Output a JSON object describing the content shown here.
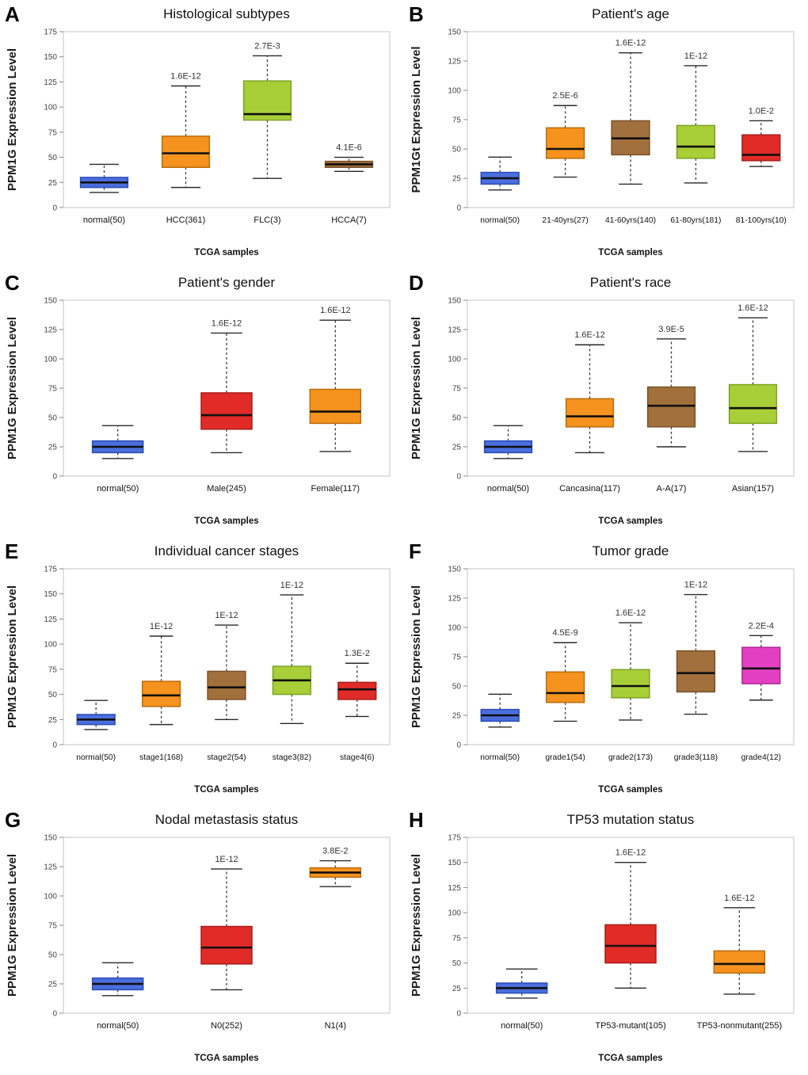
{
  "figure": {
    "background": "#ffffff",
    "xlabel": "TCGA samples"
  },
  "palette": {
    "blue": {
      "fill": "#4a6edd",
      "border": "#2b4cb8"
    },
    "orange": {
      "fill": "#f6921e",
      "border": "#b96d0e"
    },
    "green": {
      "fill": "#a8ce38",
      "border": "#7ea224"
    },
    "brown": {
      "fill": "#a1703c",
      "border": "#7a5229"
    },
    "red": {
      "fill": "#e02b27",
      "border": "#a81d1a"
    },
    "magenta": {
      "fill": "#e240c1",
      "border": "#b02894"
    }
  },
  "chart_data": [
    {
      "type": "boxplot",
      "panel_label": "A",
      "title": "Histological subtypes",
      "ylabel": "PPM1G Expression Level",
      "xlabel": "TCGA samples",
      "ylim": [
        0,
        175
      ],
      "ytick_step": 25,
      "categories": [
        "normal(50)",
        "HCC(361)",
        "FLC(3)",
        "HCCA(7)"
      ],
      "boxes": [
        {
          "color": "blue",
          "low": 15,
          "q1": 20,
          "median": 25,
          "q3": 30,
          "high": 43,
          "pvalue": ""
        },
        {
          "color": "orange",
          "low": 20,
          "q1": 40,
          "median": 54,
          "q3": 71,
          "high": 121,
          "pvalue": "1.6E-12"
        },
        {
          "color": "green",
          "low": 29,
          "q1": 87,
          "median": 93,
          "q3": 126,
          "high": 151,
          "pvalue": "2.7E-3"
        },
        {
          "color": "brown",
          "low": 36,
          "q1": 40,
          "median": 43,
          "q3": 46,
          "high": 50,
          "pvalue": "4.1E-6"
        }
      ]
    },
    {
      "type": "boxplot",
      "panel_label": "B",
      "title": "Patient's age",
      "ylabel": "PPM1Gt Expression Level",
      "xlabel": "TCGA samples",
      "ylim": [
        0,
        150
      ],
      "ytick_step": 25,
      "categories": [
        "normal(50)",
        "21-40yrs(27)",
        "41-60yrs(140)",
        "61-80yrs(181)",
        "81-100yrs(10)"
      ],
      "boxes": [
        {
          "color": "blue",
          "low": 15,
          "q1": 20,
          "median": 25,
          "q3": 30,
          "high": 43,
          "pvalue": ""
        },
        {
          "color": "orange",
          "low": 26,
          "q1": 42,
          "median": 50,
          "q3": 68,
          "high": 87,
          "pvalue": "2.5E-6"
        },
        {
          "color": "brown",
          "low": 20,
          "q1": 45,
          "median": 59,
          "q3": 74,
          "high": 132,
          "pvalue": "1.6E-12"
        },
        {
          "color": "green",
          "low": 21,
          "q1": 42,
          "median": 52,
          "q3": 70,
          "high": 121,
          "pvalue": "1E-12"
        },
        {
          "color": "red",
          "low": 35,
          "q1": 40,
          "median": 45,
          "q3": 62,
          "high": 74,
          "pvalue": "1.0E-2"
        }
      ]
    },
    {
      "type": "boxplot",
      "panel_label": "C",
      "title": "Patient's gender",
      "ylabel": "PPM1G Expression Level",
      "xlabel": "TCGA samples",
      "ylim": [
        0,
        150
      ],
      "ytick_step": 25,
      "categories": [
        "normal(50)",
        "Male(245)",
        "Female(117)"
      ],
      "boxes": [
        {
          "color": "blue",
          "low": 15,
          "q1": 20,
          "median": 25,
          "q3": 30,
          "high": 43,
          "pvalue": ""
        },
        {
          "color": "red",
          "low": 20,
          "q1": 40,
          "median": 52,
          "q3": 71,
          "high": 122,
          "pvalue": "1.6E-12"
        },
        {
          "color": "orange",
          "low": 21,
          "q1": 45,
          "median": 55,
          "q3": 74,
          "high": 133,
          "pvalue": "1.6E-12"
        }
      ]
    },
    {
      "type": "boxplot",
      "panel_label": "D",
      "title": "Patient's race",
      "ylabel": "PPM1G Expression Level",
      "xlabel": "TCGA samples",
      "ylim": [
        0,
        150
      ],
      "ytick_step": 25,
      "categories": [
        "normal(50)",
        "Cancasina(117)",
        "A-A(17)",
        "Asian(157)"
      ],
      "boxes": [
        {
          "color": "blue",
          "low": 15,
          "q1": 20,
          "median": 25,
          "q3": 30,
          "high": 43,
          "pvalue": ""
        },
        {
          "color": "orange",
          "low": 20,
          "q1": 42,
          "median": 51,
          "q3": 66,
          "high": 112,
          "pvalue": "1.6E-12"
        },
        {
          "color": "brown",
          "low": 25,
          "q1": 42,
          "median": 60,
          "q3": 76,
          "high": 117,
          "pvalue": "3.9E-5"
        },
        {
          "color": "green",
          "low": 21,
          "q1": 45,
          "median": 58,
          "q3": 78,
          "high": 135,
          "pvalue": "1.6E-12"
        }
      ]
    },
    {
      "type": "boxplot",
      "panel_label": "E",
      "title": "Individual cancer stages",
      "ylabel": "PPM1G Expression Level",
      "xlabel": "TCGA samples",
      "ylim": [
        0,
        175
      ],
      "ytick_step": 25,
      "categories": [
        "normal(50)",
        "stage1(168)",
        "stage2(54)",
        "stage3(82)",
        "stage4(6)"
      ],
      "boxes": [
        {
          "color": "blue",
          "low": 15,
          "q1": 20,
          "median": 25,
          "q3": 30,
          "high": 44,
          "pvalue": ""
        },
        {
          "color": "orange",
          "low": 20,
          "q1": 38,
          "median": 49,
          "q3": 63,
          "high": 108,
          "pvalue": "1E-12"
        },
        {
          "color": "brown",
          "low": 25,
          "q1": 45,
          "median": 57,
          "q3": 73,
          "high": 119,
          "pvalue": "1E-12"
        },
        {
          "color": "green",
          "low": 21,
          "q1": 50,
          "median": 64,
          "q3": 78,
          "high": 149,
          "pvalue": "1E-12"
        },
        {
          "color": "red",
          "low": 28,
          "q1": 45,
          "median": 55,
          "q3": 62,
          "high": 81,
          "pvalue": "1.3E-2"
        }
      ]
    },
    {
      "type": "boxplot",
      "panel_label": "F",
      "title": "Tumor grade",
      "ylabel": "PPM1G Expression Level",
      "xlabel": "TCGA samples",
      "ylim": [
        0,
        150
      ],
      "ytick_step": 25,
      "categories": [
        "normal(50)",
        "grade1(54)",
        "grade2(173)",
        "grade3(118)",
        "grade4(12)"
      ],
      "boxes": [
        {
          "color": "blue",
          "low": 15,
          "q1": 20,
          "median": 25,
          "q3": 30,
          "high": 43,
          "pvalue": ""
        },
        {
          "color": "orange",
          "low": 20,
          "q1": 36,
          "median": 44,
          "q3": 62,
          "high": 87,
          "pvalue": "4.5E-9"
        },
        {
          "color": "green",
          "low": 21,
          "q1": 40,
          "median": 50,
          "q3": 64,
          "high": 104,
          "pvalue": "1.6E-12"
        },
        {
          "color": "brown",
          "low": 26,
          "q1": 45,
          "median": 61,
          "q3": 80,
          "high": 128,
          "pvalue": "1E-12"
        },
        {
          "color": "magenta",
          "low": 38,
          "q1": 52,
          "median": 65,
          "q3": 83,
          "high": 93,
          "pvalue": "2.2E-4"
        }
      ]
    },
    {
      "type": "boxplot",
      "panel_label": "G",
      "title": "Nodal metastasis status",
      "ylabel": "PPM1G Expression Level",
      "xlabel": "TCGA samples",
      "ylim": [
        0,
        150
      ],
      "ytick_step": 25,
      "categories": [
        "normal(50)",
        "N0(252)",
        "N1(4)"
      ],
      "boxes": [
        {
          "color": "blue",
          "low": 15,
          "q1": 20,
          "median": 25,
          "q3": 30,
          "high": 43,
          "pvalue": ""
        },
        {
          "color": "red",
          "low": 20,
          "q1": 42,
          "median": 56,
          "q3": 74,
          "high": 123,
          "pvalue": "1E-12"
        },
        {
          "color": "orange",
          "low": 108,
          "q1": 116,
          "median": 120,
          "q3": 124,
          "high": 130,
          "pvalue": "3.8E-2"
        }
      ]
    },
    {
      "type": "boxplot",
      "panel_label": "H",
      "title": "TP53 mutation status",
      "ylabel": "PPM1G Expression Level",
      "xlabel": "TCGA samples",
      "ylim": [
        0,
        175
      ],
      "ytick_step": 25,
      "categories": [
        "normal(50)",
        "TP53-mutant(105)",
        "TP53-nonmutant(255)"
      ],
      "boxes": [
        {
          "color": "blue",
          "low": 15,
          "q1": 20,
          "median": 25,
          "q3": 30,
          "high": 44,
          "pvalue": ""
        },
        {
          "color": "red",
          "low": 25,
          "q1": 50,
          "median": 67,
          "q3": 88,
          "high": 150,
          "pvalue": "1.6E-12"
        },
        {
          "color": "orange",
          "low": 19,
          "q1": 40,
          "median": 49,
          "q3": 62,
          "high": 105,
          "pvalue": "1.6E-12"
        }
      ]
    }
  ]
}
